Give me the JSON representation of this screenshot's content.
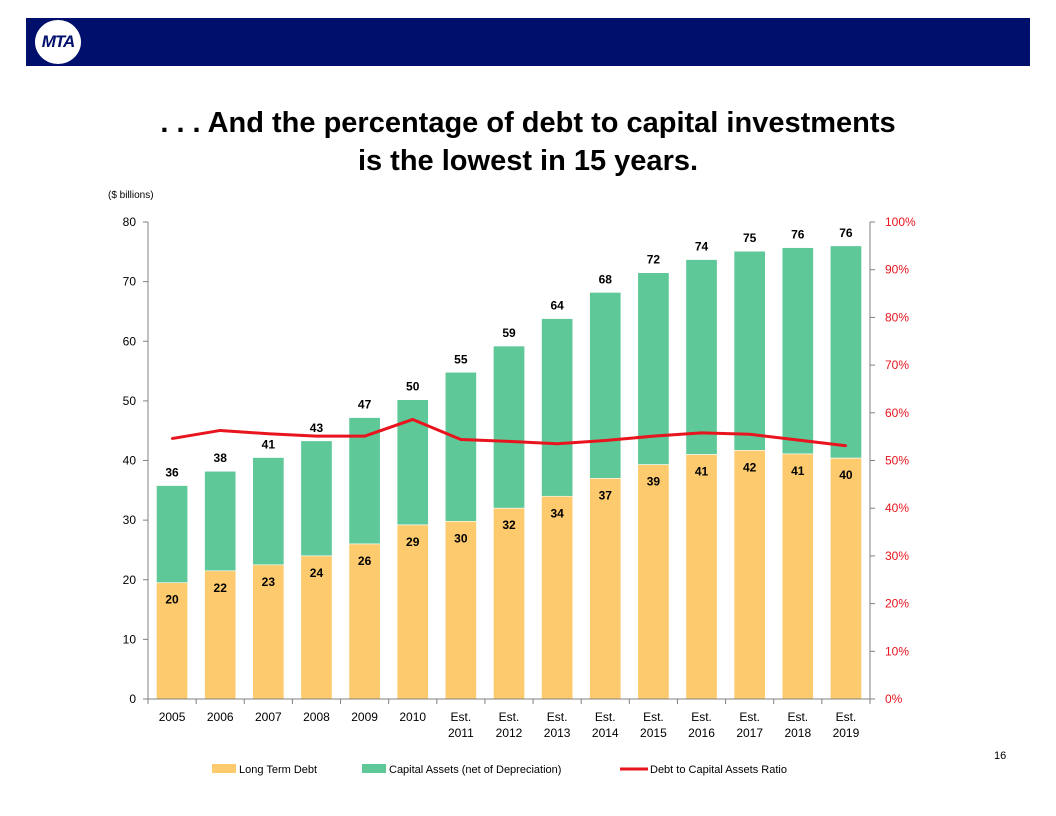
{
  "header": {
    "logo_text": "MTA",
    "title_line1": ". . . And  the percentage of debt to capital investments",
    "title_line2": "is the lowest in 15 years."
  },
  "page_number": "16",
  "chart_data": {
    "type": "bar",
    "stacked": true,
    "unit_label": "($ billions)",
    "categories": [
      [
        "2005"
      ],
      [
        "2006"
      ],
      [
        "2007"
      ],
      [
        "2008"
      ],
      [
        "2009"
      ],
      [
        "2010"
      ],
      [
        "Est.",
        "2011"
      ],
      [
        "Est.",
        "2012"
      ],
      [
        "Est.",
        "2013"
      ],
      [
        "Est.",
        "2014"
      ],
      [
        "Est.",
        "2015"
      ],
      [
        "Est.",
        "2016"
      ],
      [
        "Est.",
        "2017"
      ],
      [
        "Est.",
        "2018"
      ],
      [
        "Est.",
        "2019"
      ]
    ],
    "y_left": {
      "min": 0,
      "max": 80,
      "step": 10,
      "ticks": [
        "0",
        "10",
        "20",
        "30",
        "40",
        "50",
        "60",
        "70",
        "80"
      ]
    },
    "y_right": {
      "min": 0,
      "max": 100,
      "step": 10,
      "ticks": [
        "0%",
        "10%",
        "20%",
        "30%",
        "40%",
        "50%",
        "60%",
        "70%",
        "80%",
        "90%",
        "100%"
      ]
    },
    "series": [
      {
        "name": "Long Term Debt",
        "color": "#fdcb6e",
        "values": [
          19.5,
          21.5,
          22.5,
          24,
          26,
          29.2,
          29.8,
          32,
          34,
          37,
          39.3,
          41,
          41.7,
          41.1,
          40.4
        ],
        "labels": [
          "20",
          "22",
          "23",
          "24",
          "26",
          "29",
          "30",
          "32",
          "34",
          "37",
          "39",
          "41",
          "42",
          "41",
          "40"
        ]
      },
      {
        "name": "Capital Assets (net of Depreciation)",
        "color": "#5ec898",
        "totals": [
          35.8,
          38.2,
          40.5,
          43.3,
          47.2,
          50.2,
          54.8,
          59.2,
          63.8,
          68.2,
          71.5,
          73.7,
          75.1,
          75.7,
          76
        ],
        "labels": [
          "36",
          "38",
          "41",
          "43",
          "47",
          "50",
          "55",
          "59",
          "64",
          "68",
          "72",
          "74",
          "75",
          "76",
          "76"
        ]
      },
      {
        "name": "Debt to Capital Assets Ratio",
        "color": "#e8141e",
        "axis": "right",
        "values": [
          54.6,
          56.3,
          55.6,
          55.1,
          55.1,
          58.6,
          54.4,
          54.0,
          53.5,
          54.2,
          55.1,
          55.8,
          55.5,
          54.3,
          53.1
        ]
      }
    ],
    "legend": [
      {
        "label": "Long Term Debt",
        "color": "#fdcb6e",
        "kind": "box"
      },
      {
        "label": "Capital Assets (net of Depreciation)",
        "color": "#5ec898",
        "kind": "box"
      },
      {
        "label": "Debt to Capital Assets Ratio",
        "color": "#e8141e",
        "kind": "line"
      }
    ],
    "legend_position": "bottom",
    "grid": false
  }
}
